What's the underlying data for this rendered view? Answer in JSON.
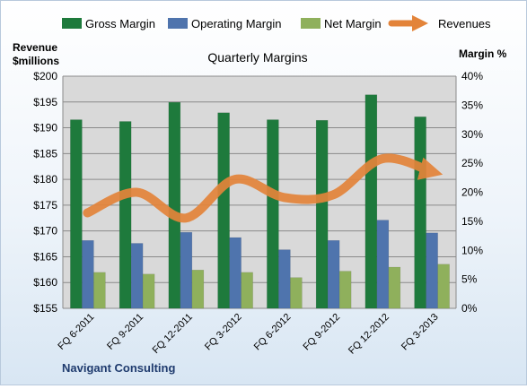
{
  "chart_data": {
    "type": "bar",
    "title": "Quarterly Margins",
    "left_axis_label_line1": "Revenue",
    "left_axis_label_line2": "$millions",
    "right_axis_label": "Margin %",
    "footer": "Navigant Consulting",
    "categories": [
      "FQ 6-2011",
      "FQ 9-2011",
      "FQ 12-2011",
      "FQ 3-2012",
      "FQ 6-2012",
      "FQ 9-2012",
      "FQ 12-2012",
      "FQ 3-2013"
    ],
    "left_axis": {
      "min": 155,
      "max": 200,
      "step": 5,
      "tick_prefix": "$"
    },
    "right_axis": {
      "min": 0,
      "max": 40,
      "step": 5,
      "tick_suffix": "%"
    },
    "bar_series": [
      {
        "name": "Gross Margin",
        "color": "#1e7a3c",
        "values": [
          32.5,
          32.2,
          35.5,
          33.7,
          32.5,
          32.4,
          36.8,
          33.0
        ]
      },
      {
        "name": "Operating Margin",
        "color": "#4f74ad",
        "values": [
          11.7,
          11.2,
          13.1,
          12.2,
          10.1,
          11.7,
          15.2,
          13.0
        ]
      },
      {
        "name": "Net Margin",
        "color": "#8fb05c",
        "values": [
          6.2,
          5.9,
          6.6,
          6.2,
          5.3,
          6.4,
          7.1,
          7.6
        ]
      }
    ],
    "line_series": {
      "name": "Revenues",
      "axis": "left",
      "color": "#e3843a",
      "values": [
        173.5,
        177.5,
        172.5,
        180.0,
        176.5,
        177.0,
        184.0,
        181.5
      ]
    },
    "grid": true,
    "legend_position": "top"
  }
}
